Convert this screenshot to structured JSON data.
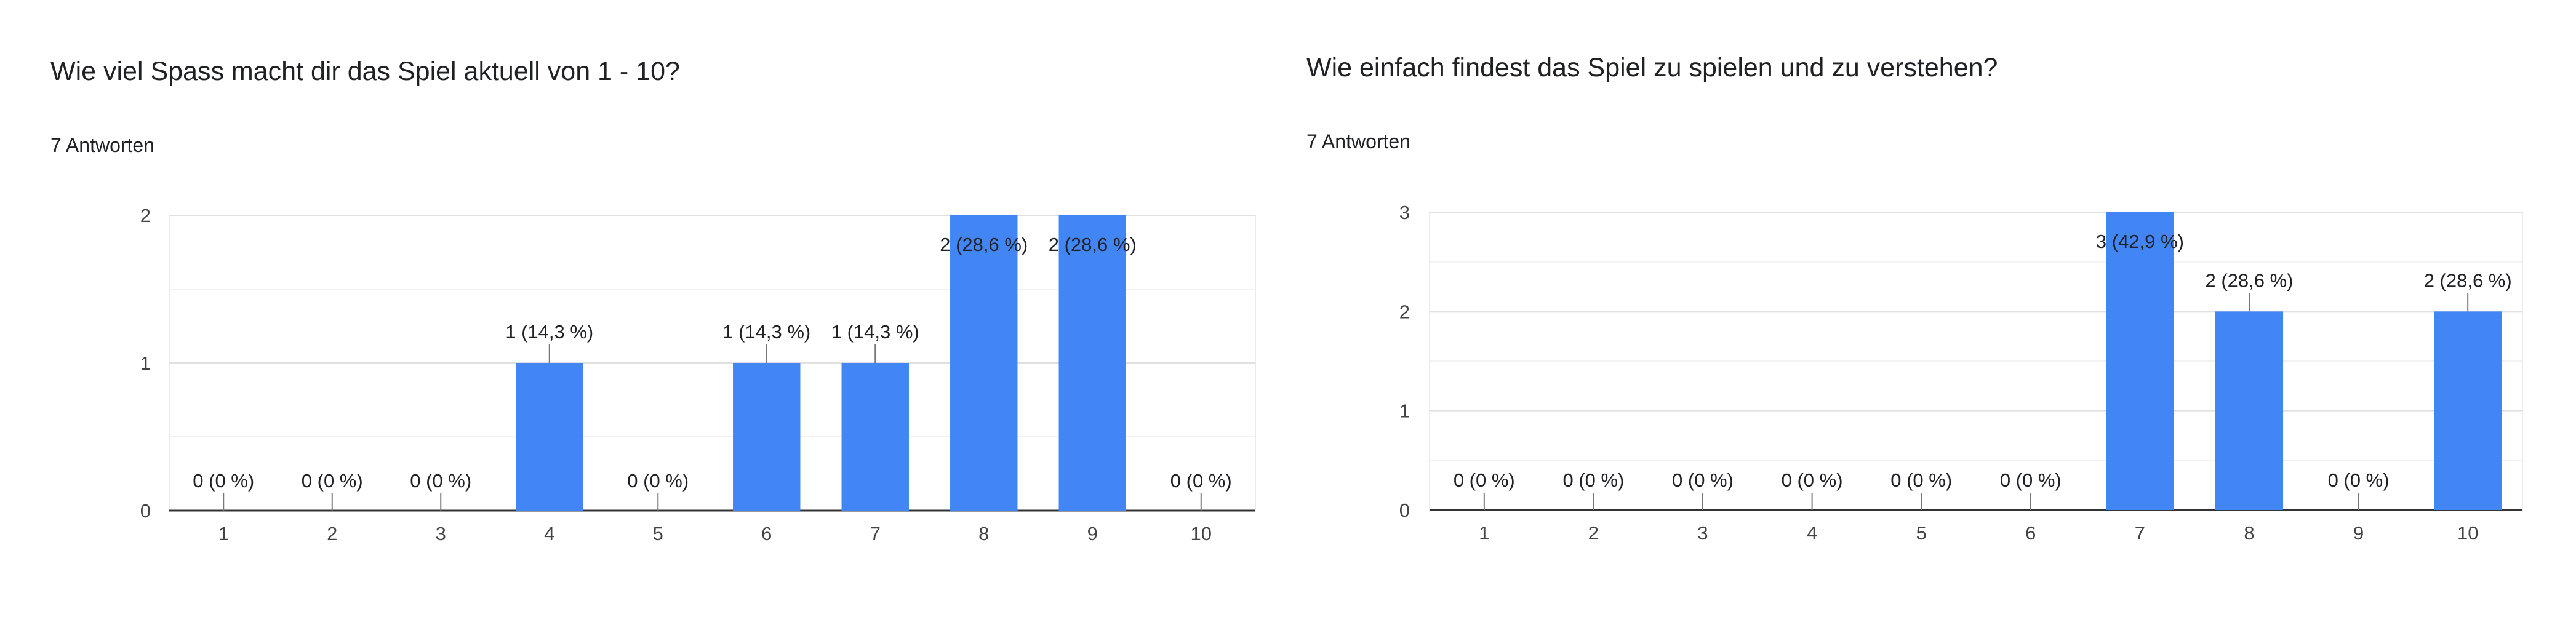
{
  "colors": {
    "bar": "#4285f4",
    "grid": "#e0e0e0",
    "axis": "#333333",
    "text": "#202124",
    "tick": "#444444"
  },
  "panels": [
    {
      "question": "Wie viel Spass macht dir das Spiel aktuell von 1 - 10?",
      "responses": "7 Antworten"
    },
    {
      "question": "Wie einfach findest das Spiel zu spielen und zu verstehen?",
      "responses": "7 Antworten"
    }
  ],
  "chart_data": [
    {
      "type": "bar",
      "categories": [
        "1",
        "2",
        "3",
        "4",
        "5",
        "6",
        "7",
        "8",
        "9",
        "10"
      ],
      "values": [
        0,
        0,
        0,
        1,
        0,
        1,
        1,
        2,
        2,
        0
      ],
      "data_labels": [
        "0 (0 %)",
        "0 (0 %)",
        "0 (0 %)",
        "1 (14,3 %)",
        "0 (0 %)",
        "1 (14,3 %)",
        "1 (14,3 %)",
        "2 (28,6 %)",
        "2 (28,6 %)",
        "0 (0 %)"
      ],
      "yticks": [
        "0",
        "1",
        "2"
      ],
      "ylim": [
        0,
        2
      ],
      "grid": true
    },
    {
      "type": "bar",
      "categories": [
        "1",
        "2",
        "3",
        "4",
        "5",
        "6",
        "7",
        "8",
        "9",
        "10"
      ],
      "values": [
        0,
        0,
        0,
        0,
        0,
        0,
        3,
        2,
        0,
        2
      ],
      "data_labels": [
        "0 (0 %)",
        "0 (0 %)",
        "0 (0 %)",
        "0 (0 %)",
        "0 (0 %)",
        "0 (0 %)",
        "3 (42,9 %)",
        "2 (28,6 %)",
        "0 (0 %)",
        "2 (28,6 %)"
      ],
      "yticks": [
        "0",
        "1",
        "2",
        "3"
      ],
      "ylim": [
        0,
        3
      ],
      "grid": true
    }
  ]
}
